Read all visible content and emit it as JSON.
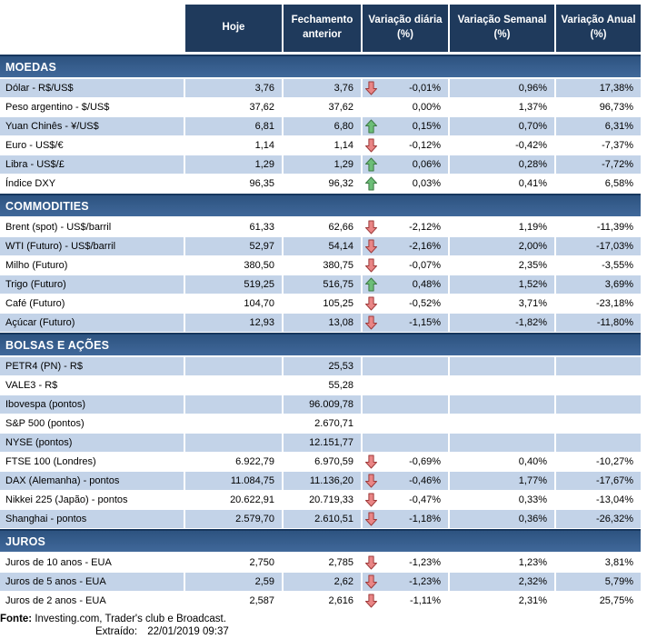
{
  "colors": {
    "header_bg": "#1F3A5C",
    "section_bar_border": "#17375E",
    "section_bar_start": "#2D5380",
    "section_bar_end": "#40689A",
    "row_shade": "#C3D3E8",
    "arrow_up_fill": "#6CBE77",
    "arrow_up_stroke": "#3E7A46",
    "arrow_down_fill": "#E98585",
    "arrow_down_stroke": "#9E3B3B"
  },
  "chart_data": {
    "type": "table",
    "columns": [
      "Hoje",
      "Fechamento anterior",
      "Variação diária (%)",
      "Variação Semanal (%)",
      "Variação Anual (%)"
    ],
    "sections": [
      {
        "title": "MOEDAS",
        "rows": [
          {
            "label": "Dólar - R$/US$",
            "hoje": "3,76",
            "fechamento": "3,76",
            "arrow": "down",
            "diaria": "-0,01%",
            "semanal": "0,96%",
            "anual": "17,38%",
            "shaded": true
          },
          {
            "label": "Peso argentino - $/US$",
            "hoje": "37,62",
            "fechamento": "37,62",
            "arrow": null,
            "diaria": "0,00%",
            "semanal": "1,37%",
            "anual": "96,73%",
            "shaded": false
          },
          {
            "label": "Yuan Chinês - ¥/US$",
            "hoje": "6,81",
            "fechamento": "6,80",
            "arrow": "up",
            "diaria": "0,15%",
            "semanal": "0,70%",
            "anual": "6,31%",
            "shaded": true
          },
          {
            "label": "Euro - US$/€",
            "hoje": "1,14",
            "fechamento": "1,14",
            "arrow": "down",
            "diaria": "-0,12%",
            "semanal": "-0,42%",
            "anual": "-7,37%",
            "shaded": false
          },
          {
            "label": "Libra - US$/£",
            "hoje": "1,29",
            "fechamento": "1,29",
            "arrow": "up",
            "diaria": "0,06%",
            "semanal": "0,28%",
            "anual": "-7,72%",
            "shaded": true
          },
          {
            "label": "Índice DXY",
            "hoje": "96,35",
            "fechamento": "96,32",
            "arrow": "up",
            "diaria": "0,03%",
            "semanal": "0,41%",
            "anual": "6,58%",
            "shaded": false
          }
        ]
      },
      {
        "title": "COMMODITIES",
        "rows": [
          {
            "label": "Brent (spot) - US$/barril",
            "hoje": "61,33",
            "fechamento": "62,66",
            "arrow": "down",
            "diaria": "-2,12%",
            "semanal": "1,19%",
            "anual": "-11,39%",
            "shaded": false
          },
          {
            "label": "WTI (Futuro) - US$/barril",
            "hoje": "52,97",
            "fechamento": "54,14",
            "arrow": "down",
            "diaria": "-2,16%",
            "semanal": "2,00%",
            "anual": "-17,03%",
            "shaded": true
          },
          {
            "label": "Milho (Futuro)",
            "hoje": "380,50",
            "fechamento": "380,75",
            "arrow": "down",
            "diaria": "-0,07%",
            "semanal": "2,35%",
            "anual": "-3,55%",
            "shaded": false
          },
          {
            "label": "Trigo (Futuro)",
            "hoje": "519,25",
            "fechamento": "516,75",
            "arrow": "up",
            "diaria": "0,48%",
            "semanal": "1,52%",
            "anual": "3,69%",
            "shaded": true
          },
          {
            "label": "Café (Futuro)",
            "hoje": "104,70",
            "fechamento": "105,25",
            "arrow": "down",
            "diaria": "-0,52%",
            "semanal": "3,71%",
            "anual": "-23,18%",
            "shaded": false
          },
          {
            "label": "Açúcar (Futuro)",
            "hoje": "12,93",
            "fechamento": "13,08",
            "arrow": "down",
            "diaria": "-1,15%",
            "semanal": "-1,82%",
            "anual": "-11,80%",
            "shaded": true
          }
        ]
      },
      {
        "title": "BOLSAS E AÇÕES",
        "rows": [
          {
            "label": "PETR4 (PN) - R$",
            "hoje": "",
            "fechamento": "25,53",
            "arrow": null,
            "diaria": "",
            "semanal": "",
            "anual": "",
            "shaded": true
          },
          {
            "label": "VALE3 - R$",
            "hoje": "",
            "fechamento": "55,28",
            "arrow": null,
            "diaria": "",
            "semanal": "",
            "anual": "",
            "shaded": false
          },
          {
            "label": "Ibovespa (pontos)",
            "hoje": "",
            "fechamento": "96.009,78",
            "arrow": null,
            "diaria": "",
            "semanal": "",
            "anual": "",
            "shaded": true
          },
          {
            "label": "S&P 500 (pontos)",
            "hoje": "",
            "fechamento": "2.670,71",
            "arrow": null,
            "diaria": "",
            "semanal": "",
            "anual": "",
            "shaded": false
          },
          {
            "label": "NYSE (pontos)",
            "hoje": "",
            "fechamento": "12.151,77",
            "arrow": null,
            "diaria": "",
            "semanal": "",
            "anual": "",
            "shaded": true
          },
          {
            "label": "FTSE 100 (Londres)",
            "hoje": "6.922,79",
            "fechamento": "6.970,59",
            "arrow": "down",
            "diaria": "-0,69%",
            "semanal": "0,40%",
            "anual": "-10,27%",
            "shaded": false
          },
          {
            "label": "DAX (Alemanha) - pontos",
            "hoje": "11.084,75",
            "fechamento": "11.136,20",
            "arrow": "down",
            "diaria": "-0,46%",
            "semanal": "1,77%",
            "anual": "-17,67%",
            "shaded": true
          },
          {
            "label": "Nikkei 225 (Japão) - pontos",
            "hoje": "20.622,91",
            "fechamento": "20.719,33",
            "arrow": "down",
            "diaria": "-0,47%",
            "semanal": "0,33%",
            "anual": "-13,04%",
            "shaded": false
          },
          {
            "label": "Shanghai - pontos",
            "hoje": "2.579,70",
            "fechamento": "2.610,51",
            "arrow": "down",
            "diaria": "-1,18%",
            "semanal": "0,36%",
            "anual": "-26,32%",
            "shaded": true
          }
        ]
      },
      {
        "title": "JUROS",
        "rows": [
          {
            "label": "Juros de 10 anos - EUA",
            "hoje": "2,750",
            "fechamento": "2,785",
            "arrow": "down",
            "diaria": "-1,23%",
            "semanal": "1,23%",
            "anual": "3,81%",
            "shaded": false
          },
          {
            "label": "Juros de 5 anos - EUA",
            "hoje": "2,59",
            "fechamento": "2,62",
            "arrow": "down",
            "diaria": "-1,23%",
            "semanal": "2,32%",
            "anual": "5,79%",
            "shaded": true
          },
          {
            "label": "Juros de 2 anos - EUA",
            "hoje": "2,587",
            "fechamento": "2,616",
            "arrow": "down",
            "diaria": "-1,11%",
            "semanal": "2,31%",
            "anual": "25,75%",
            "shaded": false
          }
        ]
      }
    ]
  },
  "footer": {
    "fonte_label": "Fonte:",
    "fonte_text": "Investing.com, Trader's club e Broadcast.",
    "extraido_label": "Extraído:",
    "extraido_value": "22/01/2019 09:37"
  }
}
